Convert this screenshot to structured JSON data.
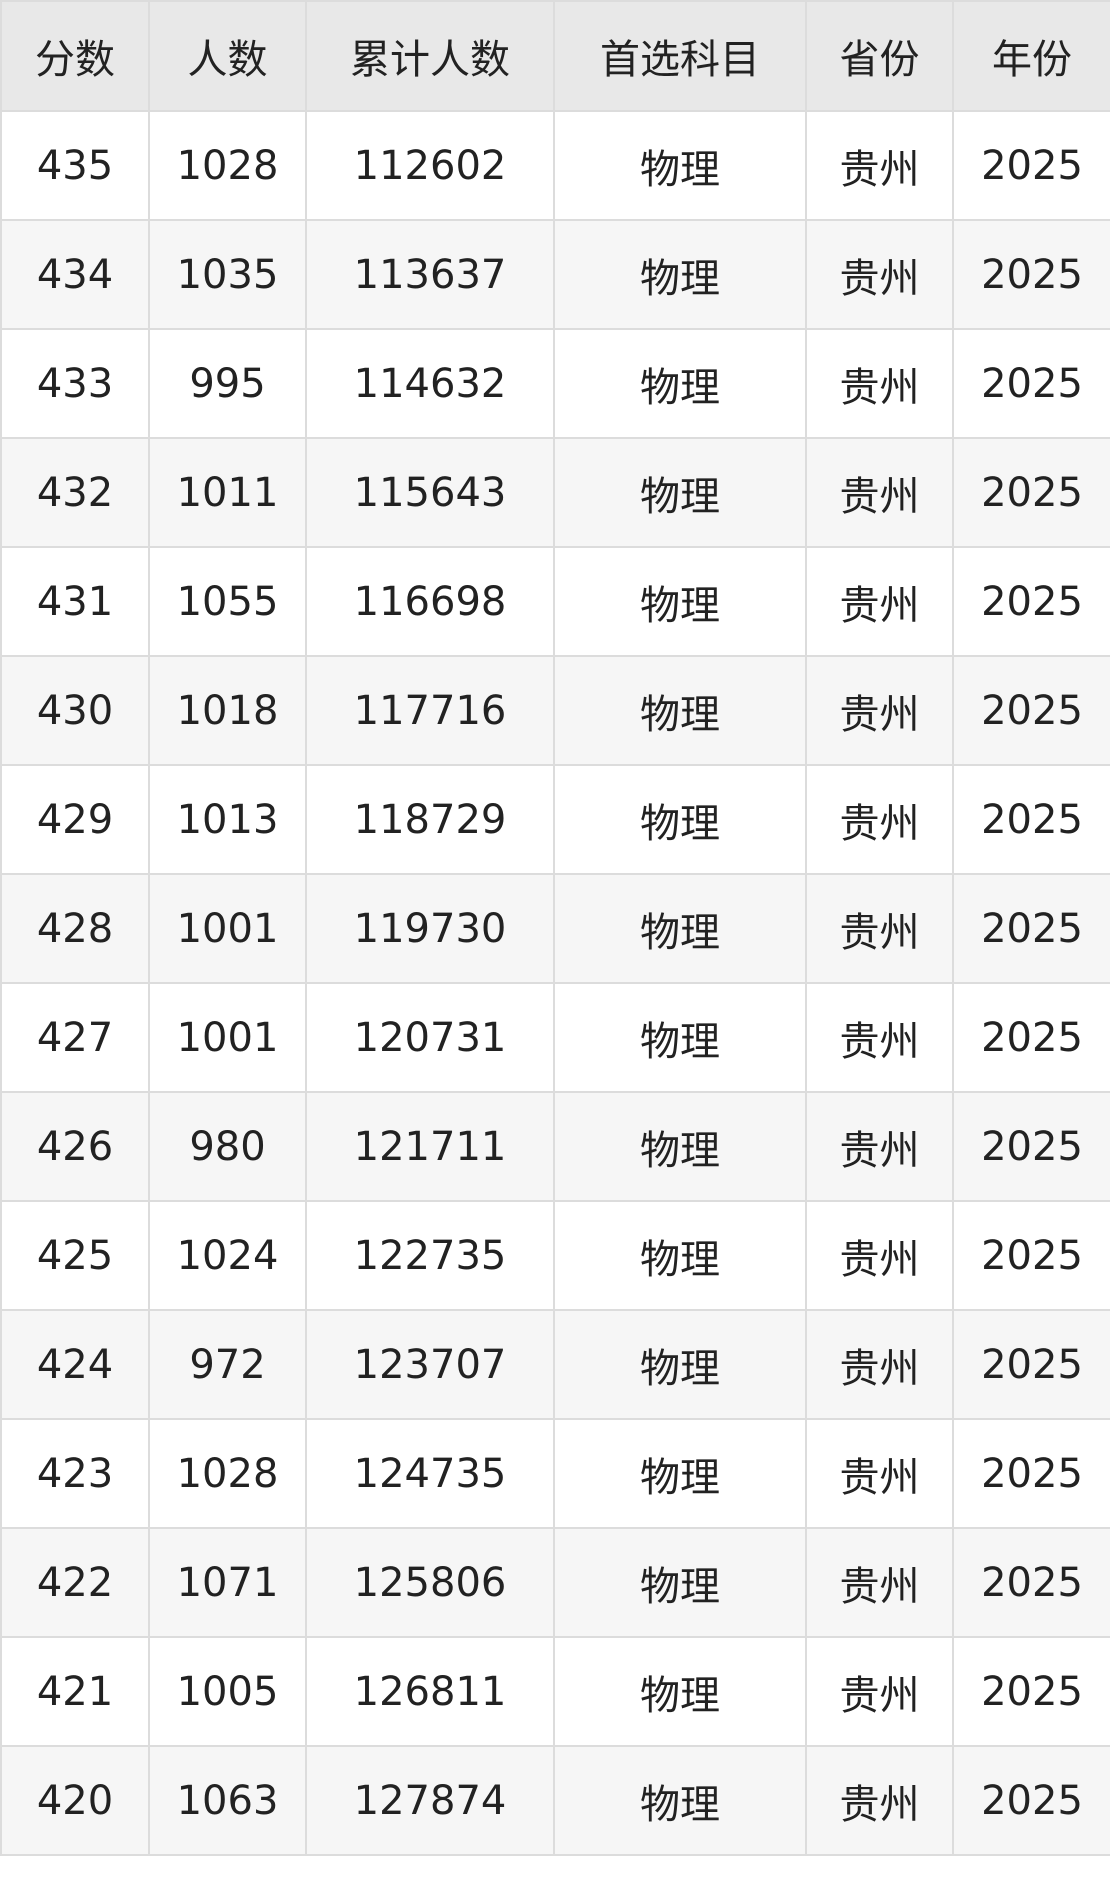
{
  "table": {
    "headers": [
      "分数",
      "人数",
      "累计人数",
      "首选科目",
      "省份",
      "年份"
    ],
    "rows": [
      [
        "435",
        "1028",
        "112602",
        "物理",
        "贵州",
        "2025"
      ],
      [
        "434",
        "1035",
        "113637",
        "物理",
        "贵州",
        "2025"
      ],
      [
        "433",
        "995",
        "114632",
        "物理",
        "贵州",
        "2025"
      ],
      [
        "432",
        "1011",
        "115643",
        "物理",
        "贵州",
        "2025"
      ],
      [
        "431",
        "1055",
        "116698",
        "物理",
        "贵州",
        "2025"
      ],
      [
        "430",
        "1018",
        "117716",
        "物理",
        "贵州",
        "2025"
      ],
      [
        "429",
        "1013",
        "118729",
        "物理",
        "贵州",
        "2025"
      ],
      [
        "428",
        "1001",
        "119730",
        "物理",
        "贵州",
        "2025"
      ],
      [
        "427",
        "1001",
        "120731",
        "物理",
        "贵州",
        "2025"
      ],
      [
        "426",
        "980",
        "121711",
        "物理",
        "贵州",
        "2025"
      ],
      [
        "425",
        "1024",
        "122735",
        "物理",
        "贵州",
        "2025"
      ],
      [
        "424",
        "972",
        "123707",
        "物理",
        "贵州",
        "2025"
      ],
      [
        "423",
        "1028",
        "124735",
        "物理",
        "贵州",
        "2025"
      ],
      [
        "422",
        "1071",
        "125806",
        "物理",
        "贵州",
        "2025"
      ],
      [
        "421",
        "1005",
        "126811",
        "物理",
        "贵州",
        "2025"
      ],
      [
        "420",
        "1063",
        "127874",
        "物理",
        "贵州",
        "2025"
      ]
    ]
  },
  "colors": {
    "header_bg": "#e8e8e8",
    "alt_row_bg": "#f6f6f6",
    "border": "#dcdcdc"
  }
}
